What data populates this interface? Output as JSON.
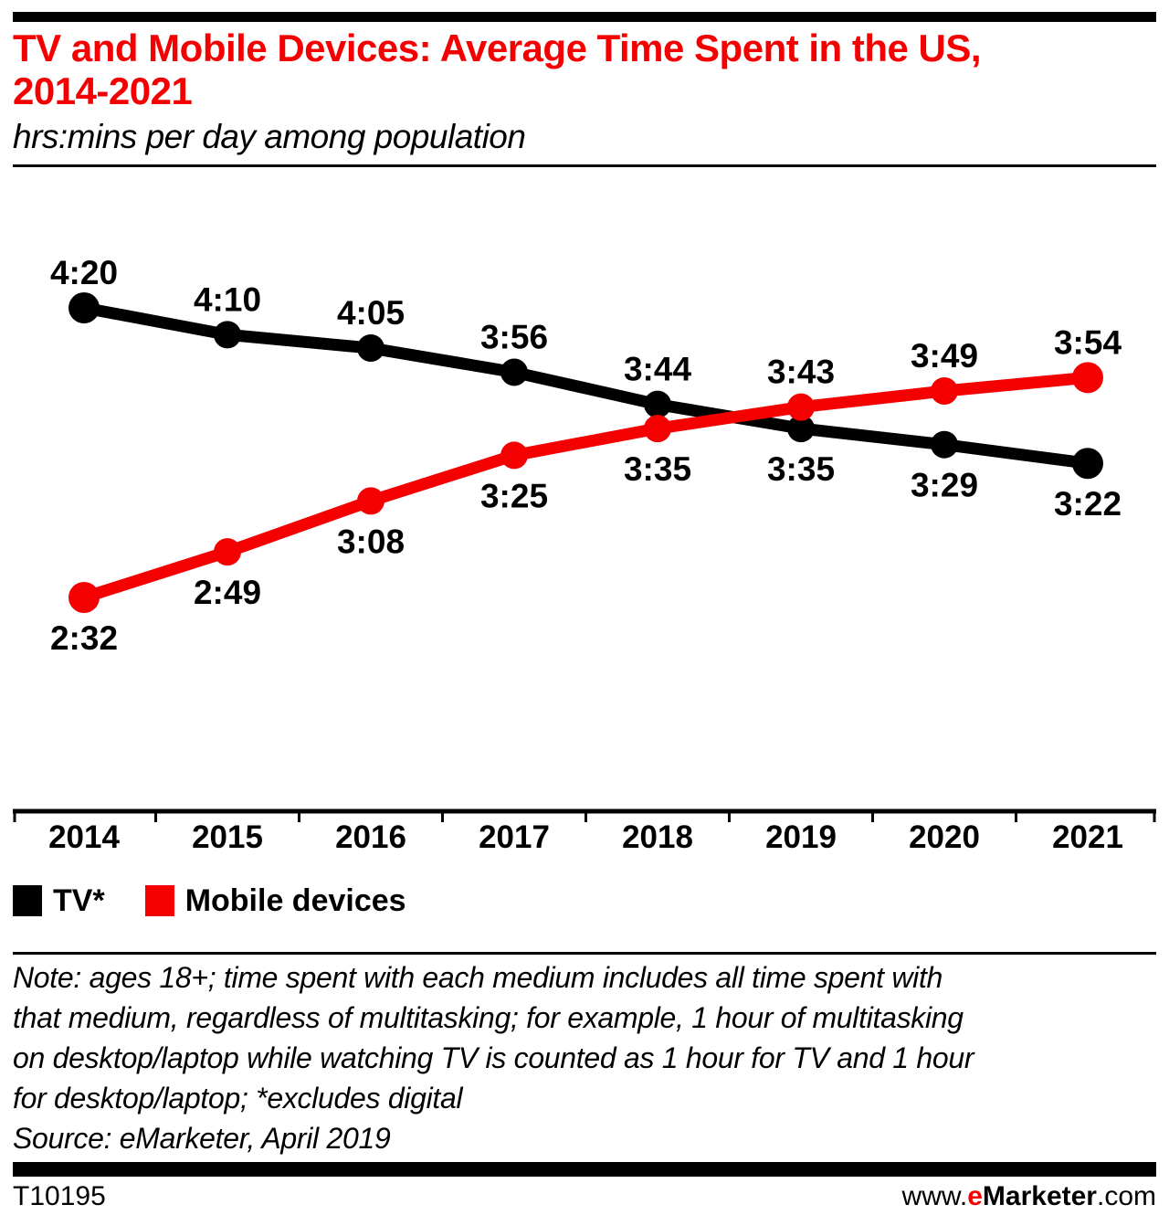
{
  "header": {
    "title_lines": [
      "TV and Mobile Devices: Average Time Spent in the US,",
      "2014-2021"
    ],
    "subtitle": "hrs:mins per day among population"
  },
  "colors": {
    "accent_red": "#f40000",
    "black": "#000000"
  },
  "chart_data": {
    "type": "line",
    "title": "TV and Mobile Devices: Average Time Spent in the US, 2014-2021",
    "subtitle": "hrs:mins per day among population",
    "unit": "hrs:mins per day among population",
    "grid": false,
    "legend_position": "bottom-left",
    "categories": [
      "2014",
      "2015",
      "2016",
      "2017",
      "2018",
      "2019",
      "2020",
      "2021"
    ],
    "ylim_minutes": [
      140,
      272
    ],
    "series": [
      {
        "name": "TV*",
        "color": "#000000",
        "labels": [
          "4:20",
          "4:10",
          "4:05",
          "3:56",
          "3:44",
          "3:35",
          "3:29",
          "3:22"
        ],
        "values_minutes": [
          260,
          250,
          245,
          236,
          224,
          215,
          209,
          202
        ],
        "label_side": [
          "above",
          "above",
          "above",
          "above",
          "above",
          "below",
          "below",
          "below"
        ]
      },
      {
        "name": "Mobile devices",
        "color": "#f40000",
        "labels": [
          "2:32",
          "2:49",
          "3:08",
          "3:25",
          "3:35",
          "3:43",
          "3:49",
          "3:54"
        ],
        "values_minutes": [
          152,
          169,
          188,
          205,
          215,
          223,
          229,
          234
        ],
        "label_side": [
          "below",
          "below",
          "below",
          "below",
          "below",
          "above",
          "above",
          "above"
        ]
      }
    ]
  },
  "note": {
    "lines": [
      "Note: ages 18+; time spent with each medium includes all time spent with",
      "that medium, regardless of multitasking; for example, 1 hour of multitasking",
      "on desktop/laptop while watching TV is counted as 1 hour for TV and 1 hour",
      "for desktop/laptop; *excludes digital"
    ],
    "source": "Source: eMarketer, April 2019"
  },
  "footer": {
    "chart_id": "T10195",
    "website": {
      "prefix": "www.",
      "e": "e",
      "brand": "Marketer",
      "suffix": ".com"
    }
  }
}
